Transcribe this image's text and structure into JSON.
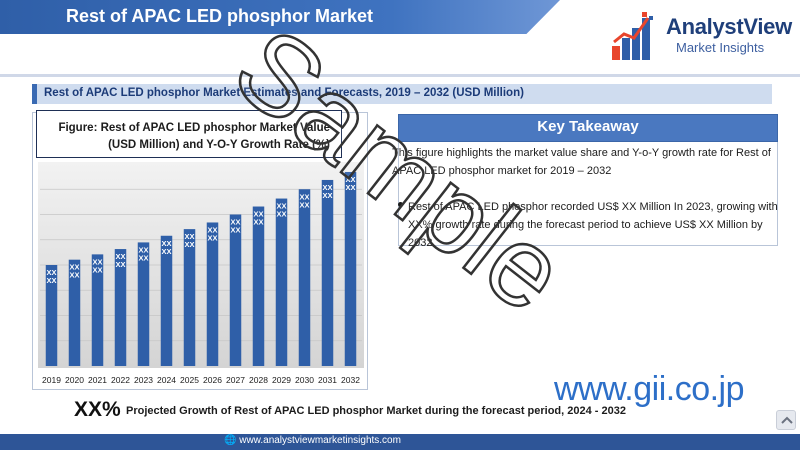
{
  "header": {
    "title": "Rest of APAC LED phosphor Market"
  },
  "brand": {
    "name": "AnalystView",
    "sub": "Market Insights"
  },
  "subtitle": "Rest of APAC LED phosphor Market Estimates and Forecasts, 2019 – 2032 (USD Million)",
  "figure_caption": "Figure: Rest of APAC LED phosphor Market Value (USD Million) and Y-O-Y Growth Rate (%)",
  "takeaway": {
    "heading": "Key Takeaway",
    "intro": "This figure highlights the market value share and Y-o-Y growth rate for Rest of APAC LED phosphor market for 2019 – 2032",
    "bullet": "Rest of APAC LED phosphor recorded US$ XX Million In 2023, growing with XX% growth rate during the forecast period to achieve US$ XX Million by 2032"
  },
  "projection": {
    "value": "XX%",
    "text": "Projected Growth of Rest of APAC LED phosphor Market during the forecast period, 2024 - 2032"
  },
  "footer": {
    "url": "www.analystviewmarketinsights.com"
  },
  "watermark": "Sample",
  "site_mark": "www.gii.co.jp",
  "colors": {
    "bar": "#2f5fa8",
    "plot_bg": "#d9d9d9",
    "title_bar": "#3a6ab3",
    "footer": "#2e5597"
  },
  "chart_data": {
    "type": "bar",
    "categories": [
      "2019",
      "2020",
      "2021",
      "2022",
      "2023",
      "2024",
      "2025",
      "2026",
      "2027",
      "2028",
      "2029",
      "2030",
      "2031",
      "2032"
    ],
    "values": [
      38,
      40,
      42,
      44,
      46.5,
      49,
      51.5,
      54,
      57,
      60,
      63,
      66.5,
      70,
      73
    ],
    "data_labels": [
      "XX",
      "XX",
      "XX",
      "XX",
      "XX",
      "XX",
      "XX",
      "XX",
      "XX",
      "XX",
      "XX",
      "XX",
      "XX",
      "XX"
    ],
    "ylim": [
      0,
      76
    ],
    "grid": true,
    "title": "",
    "xlabel": "",
    "ylabel": ""
  }
}
